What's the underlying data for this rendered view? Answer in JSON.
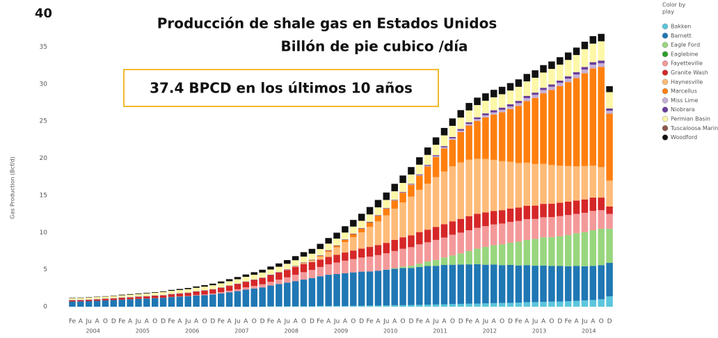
{
  "chart_data": {
    "type": "stacked_bar",
    "title": "Producción de shale gas en Estados Unidos",
    "subtitle": "Billón de pie cubico /día",
    "annotation": "37.4 BPCD en los últimos 10 años",
    "y_label": "Gas Production (Bcf/d)",
    "legend_title": [
      "Color by",
      "play"
    ],
    "ylim": [
      0,
      40
    ],
    "yticks": [
      0,
      5,
      10,
      15,
      20,
      25,
      30,
      35,
      40
    ],
    "categories": [
      "Fe",
      "A",
      "Ju",
      "A",
      "O",
      "D",
      "Fe",
      "A",
      "Ju",
      "A",
      "O",
      "D",
      "Fe",
      "A",
      "Ju",
      "A",
      "O",
      "D",
      "Fe",
      "A",
      "Ju",
      "A",
      "O",
      "D",
      "Fe",
      "A",
      "Ju",
      "A",
      "O",
      "D",
      "Fe",
      "A",
      "Ju",
      "A",
      "O",
      "D",
      "Fe",
      "A",
      "Ju",
      "A",
      "O",
      "D",
      "Fe",
      "A",
      "Ju",
      "A",
      "O",
      "D",
      "Fe",
      "A",
      "Ju",
      "A",
      "O",
      "D",
      "Fe",
      "A",
      "Ju",
      "A",
      "O",
      "D",
      "Fe",
      "A",
      "Ju",
      "A",
      "O",
      "D"
    ],
    "years": [
      "2004",
      "2005",
      "2006",
      "2007",
      "2008",
      "2009",
      "2010",
      "2011",
      "2012",
      "2013",
      "2014"
    ],
    "series": [
      {
        "name": "Bakken",
        "color": "#5bc6dc",
        "values": [
          0,
          0,
          0,
          0,
          0,
          0,
          0,
          0,
          0,
          0,
          0,
          0,
          0,
          0,
          0,
          0,
          0,
          0,
          0,
          0,
          0,
          0,
          0,
          0,
          0.05,
          0.05,
          0.05,
          0.05,
          0.05,
          0.05,
          0.1,
          0.1,
          0.1,
          0.1,
          0.12,
          0.12,
          0.15,
          0.15,
          0.18,
          0.2,
          0.2,
          0.22,
          0.25,
          0.28,
          0.3,
          0.32,
          0.35,
          0.38,
          0.4,
          0.42,
          0.45,
          0.48,
          0.5,
          0.52,
          0.55,
          0.6,
          0.62,
          0.65,
          0.68,
          0.7,
          0.75,
          0.8,
          0.85,
          0.9,
          1.0,
          1.4
        ]
      },
      {
        "name": "Barnett",
        "color": "#1f77b4",
        "values": [
          0.7,
          0.72,
          0.75,
          0.8,
          0.85,
          0.9,
          0.95,
          1.0,
          1.05,
          1.1,
          1.15,
          1.2,
          1.3,
          1.35,
          1.4,
          1.5,
          1.55,
          1.65,
          1.8,
          1.95,
          2.1,
          2.3,
          2.45,
          2.6,
          2.8,
          3.0,
          3.2,
          3.4,
          3.6,
          3.8,
          4.0,
          4.2,
          4.3,
          4.4,
          4.5,
          4.6,
          4.6,
          4.7,
          4.8,
          4.9,
          5.0,
          5.0,
          5.1,
          5.2,
          5.2,
          5.3,
          5.3,
          5.3,
          5.3,
          5.3,
          5.2,
          5.2,
          5.1,
          5.1,
          5.0,
          5.0,
          4.9,
          4.9,
          4.8,
          4.8,
          4.7,
          4.7,
          4.6,
          4.6,
          4.6,
          4.5
        ]
      },
      {
        "name": "Eagle Ford",
        "color": "#98d67e",
        "values": [
          0,
          0,
          0,
          0,
          0,
          0,
          0,
          0,
          0,
          0,
          0,
          0,
          0,
          0,
          0,
          0,
          0,
          0,
          0,
          0,
          0,
          0,
          0,
          0,
          0,
          0,
          0,
          0,
          0,
          0,
          0,
          0,
          0,
          0,
          0,
          0,
          0,
          0,
          0.02,
          0.1,
          0.2,
          0.3,
          0.45,
          0.6,
          0.8,
          1.0,
          1.25,
          1.5,
          1.8,
          2.1,
          2.4,
          2.6,
          2.8,
          3.0,
          3.2,
          3.4,
          3.6,
          3.8,
          3.9,
          4.0,
          4.2,
          4.4,
          4.6,
          4.8,
          4.9,
          4.6
        ]
      },
      {
        "name": "Eaglebine",
        "color": "#2ca02c",
        "values": [
          0,
          0,
          0,
          0,
          0,
          0,
          0,
          0,
          0,
          0,
          0,
          0,
          0,
          0,
          0,
          0,
          0,
          0,
          0,
          0,
          0,
          0,
          0,
          0,
          0,
          0,
          0,
          0,
          0,
          0,
          0,
          0,
          0,
          0,
          0,
          0,
          0,
          0,
          0,
          0,
          0,
          0,
          0,
          0,
          0,
          0,
          0,
          0,
          0,
          0,
          0,
          0,
          0,
          0,
          0,
          0,
          0,
          0,
          0,
          0,
          0,
          0,
          0,
          0,
          0,
          0
        ]
      },
      {
        "name": "Fayetteville",
        "color": "#f4999a",
        "values": [
          0,
          0,
          0,
          0,
          0,
          0,
          0,
          0,
          0,
          0,
          0,
          0,
          0.02,
          0.03,
          0.05,
          0.07,
          0.1,
          0.12,
          0.15,
          0.2,
          0.25,
          0.3,
          0.35,
          0.42,
          0.5,
          0.6,
          0.7,
          0.85,
          1.0,
          1.1,
          1.25,
          1.4,
          1.55,
          1.7,
          1.8,
          1.9,
          2.0,
          2.1,
          2.2,
          2.3,
          2.4,
          2.5,
          2.6,
          2.6,
          2.7,
          2.7,
          2.8,
          2.8,
          2.8,
          2.8,
          2.8,
          2.8,
          2.8,
          2.8,
          2.8,
          2.8,
          2.7,
          2.7,
          2.7,
          2.7,
          2.7,
          2.6,
          2.6,
          2.6,
          2.5,
          2.0
        ]
      },
      {
        "name": "Granite Wash",
        "color": "#d62728",
        "values": [
          0.15,
          0.15,
          0.16,
          0.17,
          0.18,
          0.2,
          0.22,
          0.24,
          0.26,
          0.28,
          0.3,
          0.32,
          0.35,
          0.38,
          0.4,
          0.45,
          0.5,
          0.55,
          0.6,
          0.65,
          0.7,
          0.75,
          0.8,
          0.85,
          0.9,
          0.95,
          1.0,
          1.05,
          1.1,
          1.05,
          1.0,
          1.0,
          1.05,
          1.1,
          1.15,
          1.2,
          1.3,
          1.35,
          1.4,
          1.5,
          1.55,
          1.6,
          1.65,
          1.7,
          1.75,
          1.8,
          1.8,
          1.85,
          1.9,
          1.9,
          1.85,
          1.8,
          1.8,
          1.8,
          1.8,
          1.8,
          1.8,
          1.8,
          1.8,
          1.8,
          1.8,
          1.8,
          1.8,
          1.8,
          1.7,
          1.0
        ]
      },
      {
        "name": "Haynesville",
        "color": "#ffbb78",
        "values": [
          0,
          0,
          0,
          0,
          0,
          0,
          0,
          0,
          0,
          0,
          0,
          0,
          0,
          0,
          0,
          0,
          0,
          0,
          0,
          0,
          0,
          0,
          0,
          0,
          0,
          0,
          0.02,
          0.05,
          0.1,
          0.2,
          0.4,
          0.7,
          1.0,
          1.4,
          1.8,
          2.2,
          2.7,
          3.2,
          3.7,
          4.2,
          4.7,
          5.2,
          5.7,
          6.2,
          6.7,
          7.1,
          7.4,
          7.6,
          7.6,
          7.4,
          7.2,
          6.9,
          6.6,
          6.3,
          6.0,
          5.8,
          5.6,
          5.4,
          5.2,
          5.0,
          4.8,
          4.6,
          4.5,
          4.3,
          4.1,
          3.5
        ]
      },
      {
        "name": "Marcellus",
        "color": "#ff7f0e",
        "values": [
          0,
          0,
          0,
          0,
          0,
          0,
          0,
          0,
          0,
          0,
          0,
          0,
          0,
          0,
          0,
          0,
          0,
          0,
          0,
          0,
          0,
          0,
          0,
          0,
          0,
          0,
          0,
          0.02,
          0.04,
          0.06,
          0.1,
          0.15,
          0.2,
          0.3,
          0.4,
          0.5,
          0.6,
          0.75,
          0.9,
          1.1,
          1.3,
          1.6,
          1.9,
          2.3,
          2.7,
          3.1,
          3.6,
          4.1,
          4.6,
          5.1,
          5.6,
          6.1,
          6.6,
          7.1,
          7.7,
          8.3,
          8.9,
          9.5,
          10.1,
          10.7,
          11.3,
          11.9,
          12.5,
          13.1,
          13.5,
          9.0
        ]
      },
      {
        "name": "Miss Lime",
        "color": "#c5b0d5",
        "values": [
          0,
          0,
          0,
          0,
          0,
          0,
          0,
          0,
          0,
          0,
          0,
          0,
          0,
          0,
          0,
          0,
          0,
          0,
          0,
          0,
          0,
          0,
          0,
          0,
          0,
          0,
          0,
          0,
          0,
          0,
          0,
          0,
          0,
          0,
          0,
          0,
          0,
          0,
          0,
          0.02,
          0.04,
          0.06,
          0.08,
          0.1,
          0.12,
          0.15,
          0.18,
          0.2,
          0.22,
          0.25,
          0.28,
          0.3,
          0.32,
          0.35,
          0.37,
          0.4,
          0.42,
          0.44,
          0.45,
          0.46,
          0.47,
          0.48,
          0.5,
          0.5,
          0.5,
          0.4
        ]
      },
      {
        "name": "Niobrara",
        "color": "#6a3d9a",
        "values": [
          0.05,
          0.05,
          0.05,
          0.05,
          0.05,
          0.05,
          0.05,
          0.05,
          0.05,
          0.05,
          0.05,
          0.05,
          0.05,
          0.05,
          0.05,
          0.05,
          0.05,
          0.05,
          0.05,
          0.05,
          0.05,
          0.05,
          0.05,
          0.05,
          0.06,
          0.06,
          0.06,
          0.06,
          0.06,
          0.06,
          0.07,
          0.07,
          0.07,
          0.07,
          0.07,
          0.07,
          0.08,
          0.08,
          0.08,
          0.08,
          0.08,
          0.08,
          0.1,
          0.12,
          0.14,
          0.16,
          0.18,
          0.2,
          0.22,
          0.24,
          0.26,
          0.28,
          0.3,
          0.3,
          0.3,
          0.3,
          0.3,
          0.3,
          0.3,
          0.3,
          0.32,
          0.32,
          0.34,
          0.34,
          0.35,
          0.3
        ]
      },
      {
        "name": "Permian Basin",
        "color": "#fdf7a8",
        "values": [
          0.25,
          0.26,
          0.27,
          0.28,
          0.29,
          0.3,
          0.32,
          0.33,
          0.35,
          0.36,
          0.38,
          0.4,
          0.42,
          0.44,
          0.46,
          0.48,
          0.5,
          0.52,
          0.55,
          0.58,
          0.6,
          0.62,
          0.65,
          0.68,
          0.7,
          0.72,
          0.75,
          0.78,
          0.8,
          0.82,
          0.85,
          0.88,
          0.9,
          0.92,
          0.95,
          0.98,
          1.0,
          1.05,
          1.1,
          1.15,
          1.2,
          1.25,
          1.3,
          1.35,
          1.4,
          1.45,
          1.5,
          1.55,
          1.6,
          1.65,
          1.7,
          1.75,
          1.8,
          1.85,
          1.9,
          1.95,
          2.0,
          2.05,
          2.1,
          2.15,
          2.2,
          2.3,
          2.4,
          2.5,
          2.6,
          2.2
        ]
      },
      {
        "name": "Tuscaloosa Marine Shale",
        "color": "#8c564b",
        "values": [
          0,
          0,
          0,
          0,
          0,
          0,
          0,
          0,
          0,
          0,
          0,
          0,
          0,
          0,
          0,
          0,
          0,
          0,
          0,
          0,
          0,
          0,
          0,
          0,
          0,
          0,
          0,
          0,
          0,
          0,
          0,
          0,
          0,
          0,
          0,
          0,
          0,
          0,
          0,
          0,
          0,
          0,
          0,
          0,
          0,
          0,
          0,
          0,
          0,
          0,
          0,
          0,
          0,
          0,
          0,
          0,
          0,
          0,
          0,
          0,
          0,
          0,
          0,
          0,
          0,
          0
        ]
      },
      {
        "name": "Woodford",
        "color": "#111111",
        "values": [
          0.05,
          0.05,
          0.05,
          0.05,
          0.05,
          0.05,
          0.08,
          0.08,
          0.08,
          0.08,
          0.08,
          0.08,
          0.12,
          0.14,
          0.16,
          0.18,
          0.2,
          0.22,
          0.25,
          0.28,
          0.3,
          0.32,
          0.35,
          0.38,
          0.4,
          0.45,
          0.5,
          0.55,
          0.6,
          0.65,
          0.7,
          0.75,
          0.8,
          0.85,
          0.9,
          0.95,
          1.0,
          1.0,
          1.0,
          1.0,
          1.0,
          1.0,
          1.0,
          1.0,
          1.0,
          1.0,
          1.0,
          1.0,
          1.0,
          1.0,
          1.0,
          1.0,
          1.0,
          1.0,
          1.0,
          1.0,
          1.0,
          1.0,
          1.0,
          1.0,
          1.0,
          1.0,
          1.0,
          1.0,
          1.0,
          0.8
        ]
      }
    ]
  }
}
